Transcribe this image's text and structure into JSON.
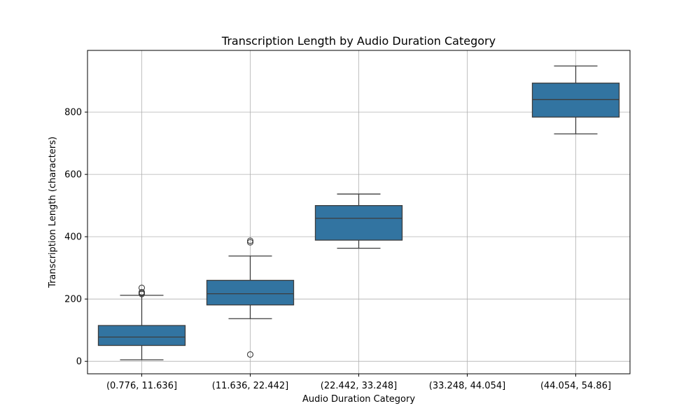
{
  "chart_data": {
    "type": "box",
    "title": "Transcription Length by Audio Duration Category",
    "xlabel": "Audio Duration Category",
    "ylabel": "Transcription Length (characters)",
    "categories": [
      "(0.776, 11.636]",
      "(11.636, 22.442]",
      "(22.442, 33.248]",
      "(33.248, 44.054]",
      "(44.054, 54.86]"
    ],
    "boxes": [
      {
        "category": "(0.776, 11.636]",
        "whisker_low": 5,
        "q1": 51,
        "median": 78,
        "q3": 115,
        "whisker_high": 212,
        "outliers": [
          216,
          219,
          222,
          236
        ]
      },
      {
        "category": "(11.636, 22.442]",
        "whisker_low": 137,
        "q1": 181,
        "median": 217,
        "q3": 260,
        "whisker_high": 338,
        "outliers": [
          22,
          382,
          387
        ]
      },
      {
        "category": "(22.442, 33.248]",
        "whisker_low": 363,
        "q1": 389,
        "median": 459,
        "q3": 500,
        "whisker_high": 537,
        "outliers": []
      },
      {
        "category": "(33.248, 44.054]",
        "whisker_low": null,
        "q1": null,
        "median": null,
        "q3": null,
        "whisker_high": null,
        "outliers": []
      },
      {
        "category": "(44.054, 54.86]",
        "whisker_low": 730,
        "q1": 784,
        "median": 840,
        "q3": 893,
        "whisker_high": 948,
        "outliers": []
      }
    ],
    "ylim": [
      -40,
      998
    ],
    "yticks": [
      0,
      200,
      400,
      600,
      800
    ],
    "grid": true,
    "colors": {
      "box_fill": "#3274a1",
      "line": "#3d3d3d",
      "grid": "#b0b0b0",
      "axis": "#000000"
    }
  }
}
